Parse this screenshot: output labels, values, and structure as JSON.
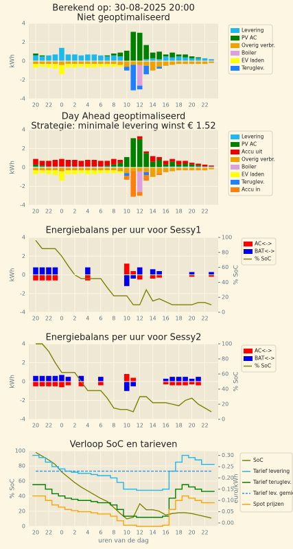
{
  "title": "Berekend op: 30-08-2025 20:00",
  "chart_data": [
    {
      "type": "bar",
      "title": "Niet geoptimaliseerd",
      "ylabel": "kWh",
      "categories": [
        "20",
        null,
        "22",
        null,
        "0",
        null,
        "2",
        null,
        "4",
        null,
        "6",
        null,
        "8",
        null,
        "10",
        null,
        "12",
        null,
        "14",
        null,
        "16",
        null,
        "18",
        null,
        "20",
        null,
        "22",
        null
      ],
      "ylim": [
        -4,
        4
      ],
      "yticks": [
        -4,
        -2,
        0,
        2,
        4
      ],
      "grid": true,
      "series": [
        {
          "name": "Levering",
          "color": "#1cb8ee",
          "values": [
            0.6,
            0.5,
            0.6,
            0.7,
            1.4,
            0.7,
            0.7,
            0.6,
            0.7,
            0.7,
            0.6,
            0.5,
            0.6,
            0.5,
            0,
            0,
            0,
            0.2,
            0.3,
            0.2,
            0.5,
            0.4,
            0.5,
            0.4,
            0.3,
            0.3,
            0.3,
            0.2
          ]
        },
        {
          "name": "PV AC",
          "color": "#008000",
          "values": [
            0.2,
            0.1,
            0,
            0,
            0,
            0,
            0,
            0,
            0,
            0,
            0,
            0.1,
            0.2,
            0.4,
            1.1,
            3.1,
            3.0,
            1.5,
            0.6,
            0.8,
            0.2,
            0.5,
            0.2,
            0.3,
            0.2,
            0.1,
            0,
            0
          ]
        },
        {
          "name": "Overig verbr.",
          "color": "#f0a000",
          "values": [
            -0.3,
            -0.3,
            -0.3,
            -0.3,
            -0.4,
            -0.3,
            -0.3,
            -0.3,
            -0.3,
            -0.3,
            -0.3,
            -0.3,
            -0.3,
            -0.4,
            -0.6,
            -0.4,
            -0.4,
            -0.5,
            -1.0,
            -0.6,
            -0.5,
            -0.4,
            -0.3,
            -0.3,
            -0.3,
            -0.3,
            -0.3,
            -0.2
          ]
        },
        {
          "name": "Boiler",
          "color": "#dda0dd",
          "values": [
            0,
            0,
            0,
            0,
            0,
            0,
            0,
            0,
            0,
            0,
            0,
            0,
            0,
            0,
            0,
            0,
            -2.2,
            0,
            0,
            0,
            0,
            0,
            0,
            0,
            0,
            0,
            0,
            0
          ]
        },
        {
          "name": "EV laden",
          "color": "#ffff00",
          "values": [
            -0.4,
            -0.3,
            -0.4,
            -0.5,
            -1.0,
            -0.4,
            -0.4,
            -0.3,
            -0.4,
            -0.4,
            -0.3,
            -0.3,
            -0.3,
            -0.2,
            0,
            0,
            0,
            0,
            0,
            0,
            0,
            0,
            0,
            0,
            0,
            0,
            0,
            0
          ]
        },
        {
          "name": "Teruglev.",
          "color": "#1e80ff",
          "values": [
            0,
            0,
            0,
            0,
            0,
            0,
            0,
            0,
            0,
            0,
            0,
            0,
            0,
            0,
            -0.4,
            -2.7,
            -0.4,
            -0.9,
            0,
            -0.2,
            0,
            0,
            0,
            0,
            0,
            0,
            0,
            0
          ]
        }
      ]
    },
    {
      "type": "bar",
      "title": "Day Ahead geoptimaliseerd",
      "subtitle": "Strategie: minimale levering winst € 1.52",
      "ylabel": "kWh",
      "categories": [
        "20",
        null,
        "22",
        null,
        "0",
        null,
        "2",
        null,
        "4",
        null,
        "6",
        null,
        "8",
        null,
        "10",
        null,
        "12",
        null,
        "14",
        null,
        "16",
        null,
        "18",
        null,
        "20",
        null,
        "22",
        null
      ],
      "ylim": [
        -4,
        4
      ],
      "yticks": [
        -4,
        -2,
        0,
        2,
        4
      ],
      "grid": true,
      "series": [
        {
          "name": "Levering",
          "color": "#1cb8ee",
          "values": [
            0.1,
            0.1,
            0.1,
            0.1,
            0.1,
            0.1,
            0.1,
            0.1,
            0.1,
            0.1,
            0.1,
            0.1,
            0.1,
            0.1,
            0,
            0,
            0,
            0,
            0,
            0,
            0.1,
            0.1,
            0.1,
            0.1,
            0.1,
            0.1,
            0.1,
            0.1
          ]
        },
        {
          "name": "PV AC",
          "color": "#008000",
          "values": [
            0.2,
            0.1,
            0,
            0,
            0,
            0,
            0,
            0,
            0,
            0,
            0,
            0.1,
            0.2,
            0.4,
            1.1,
            3.1,
            3.0,
            1.5,
            0.6,
            0.8,
            0.2,
            0.5,
            0.2,
            0.3,
            0.2,
            0.1,
            0,
            0
          ]
        },
        {
          "name": "Accu uit",
          "color": "#ee0000",
          "values": [
            0.6,
            0.5,
            0.6,
            0.7,
            0.8,
            0.7,
            0.7,
            0.6,
            0.7,
            0.7,
            0.6,
            0.5,
            0.6,
            0.3,
            0,
            0,
            0.3,
            0.2,
            0.6,
            0.3,
            0.4,
            0.3,
            0.4,
            0.3,
            0.2,
            0.2,
            0.2,
            0.1
          ]
        },
        {
          "name": "Overig verbr.",
          "color": "#f0a000",
          "values": [
            -0.3,
            -0.3,
            -0.3,
            -0.3,
            -0.4,
            -0.3,
            -0.3,
            -0.3,
            -0.3,
            -0.3,
            -0.3,
            -0.3,
            -0.3,
            -0.4,
            -0.6,
            -0.4,
            -0.4,
            -0.5,
            -1.0,
            -0.6,
            -0.5,
            -0.4,
            -0.3,
            -0.3,
            -0.3,
            -0.3,
            -0.3,
            -0.2
          ]
        },
        {
          "name": "Boiler",
          "color": "#dda0dd",
          "values": [
            0,
            0,
            0,
            0,
            0,
            0,
            0,
            0,
            0,
            0,
            0,
            0,
            0,
            0,
            0,
            0,
            -2.2,
            0,
            0,
            0,
            0,
            0,
            0,
            0,
            0,
            0,
            0,
            0
          ]
        },
        {
          "name": "EV laden",
          "color": "#ffff00",
          "values": [
            -0.4,
            -0.3,
            -0.4,
            -0.5,
            -1.0,
            -0.4,
            -0.4,
            -0.3,
            -0.4,
            -0.4,
            -0.3,
            -0.3,
            -0.3,
            -0.2,
            0,
            0,
            0,
            0,
            0,
            0,
            0,
            0,
            0,
            0,
            0,
            0,
            0,
            0
          ]
        },
        {
          "name": "Teruglev.",
          "color": "#1e80ff",
          "values": [
            0,
            0,
            0,
            0,
            0,
            0,
            0,
            0,
            0,
            0,
            0,
            0,
            0,
            0,
            -0.3,
            0,
            0,
            -0.3,
            0,
            0,
            0,
            0,
            0,
            0,
            0,
            0,
            0,
            0
          ]
        },
        {
          "name": "Accu in",
          "color": "#ff7f0e",
          "values": [
            0,
            0,
            0,
            0,
            0,
            0,
            0,
            0,
            0,
            0,
            0,
            0,
            0,
            0,
            -0.4,
            -2.7,
            -0.4,
            -0.6,
            0,
            -0.2,
            0,
            0,
            0,
            0,
            0,
            0,
            0,
            0
          ]
        }
      ]
    },
    {
      "type": "combo",
      "title": "Energiebalans per uur voor Sessy1",
      "ylabel": "kWh",
      "y2label": "% SoC",
      "categories": [
        "20",
        null,
        "22",
        null,
        "0",
        null,
        "2",
        null,
        "4",
        null,
        "6",
        null,
        "8",
        null,
        "10",
        null,
        "12",
        null,
        "14",
        null,
        "16",
        null,
        "18",
        null,
        "20",
        null,
        "22",
        null
      ],
      "ylim": [
        -4,
        4
      ],
      "yticks": [
        -4,
        -2,
        0,
        2,
        4
      ],
      "y2lim": [
        0,
        100
      ],
      "y2ticks": [
        0,
        20,
        40,
        60,
        80,
        100
      ],
      "grid": true,
      "series": [
        {
          "name": "AC<->",
          "color": "#ff0000",
          "kind": "bar",
          "values": [
            -0.6,
            -0.6,
            -0.6,
            -0.6,
            0,
            0,
            0,
            0,
            -0.6,
            0,
            0,
            0,
            0,
            0,
            1.2,
            0.4,
            -0.5,
            0,
            -0.4,
            -0.3,
            0,
            0,
            0,
            0,
            -0.2,
            0,
            0,
            -0.2
          ]
        },
        {
          "name": "BAT<->",
          "color": "#0000ee",
          "kind": "bar",
          "values": [
            0.8,
            0.8,
            0.8,
            0.8,
            0,
            0,
            0,
            0,
            0.8,
            0,
            0,
            0,
            0,
            0,
            -1.2,
            -0.4,
            0.8,
            0,
            0.6,
            0.4,
            0,
            0,
            0,
            0,
            0.3,
            0,
            0,
            0.3
          ]
        },
        {
          "name": "% SoC",
          "color": "#808000",
          "kind": "line",
          "axis": "y2",
          "values": [
            96,
            85,
            85,
            85,
            75,
            62,
            50,
            45,
            45,
            45,
            45,
            33,
            22,
            22,
            22,
            10,
            10,
            30,
            15,
            18,
            14,
            10,
            10,
            10,
            10,
            13,
            13,
            10
          ]
        }
      ]
    },
    {
      "type": "combo",
      "title": "Energiebalans per uur voor Sessy2",
      "ylabel": "kWh",
      "y2label": "% SoC",
      "categories": [
        "20",
        null,
        "22",
        null,
        "0",
        null,
        "2",
        null,
        "4",
        null,
        "6",
        null,
        "8",
        null,
        "10",
        null,
        "12",
        null,
        "14",
        null,
        "16",
        null,
        "18",
        null,
        "20",
        null,
        "22",
        null
      ],
      "ylim": [
        -4,
        4
      ],
      "yticks": [
        -4,
        -2,
        0,
        2,
        4
      ],
      "y2lim": [
        0,
        100
      ],
      "y2ticks": [
        0,
        20,
        40,
        60,
        80,
        100
      ],
      "grid": true,
      "series": [
        {
          "name": "AC<->",
          "color": "#ff0000",
          "kind": "bar",
          "values": [
            -0.5,
            -0.5,
            -0.5,
            -0.5,
            -0.6,
            -0.4,
            0,
            -0.5,
            0,
            0,
            -0.4,
            0,
            0,
            0,
            0.8,
            0.4,
            0,
            0,
            0,
            0,
            -0.3,
            -0.4,
            -0.4,
            -0.4,
            -0.3,
            -0.4,
            0,
            0
          ]
        },
        {
          "name": "BAT<->",
          "color": "#0000ee",
          "kind": "bar",
          "values": [
            0.6,
            0.6,
            0.6,
            0.6,
            0.7,
            0.5,
            0,
            0.6,
            0,
            0,
            0.5,
            0,
            0,
            0,
            -1.0,
            -0.5,
            0,
            0,
            0,
            0,
            0.3,
            0.5,
            0.5,
            0.5,
            0.3,
            0.5,
            0,
            0
          ]
        },
        {
          "name": "% SoC",
          "color": "#808000",
          "kind": "line",
          "axis": "y2",
          "values": [
            100,
            100,
            90,
            75,
            62,
            62,
            62,
            50,
            38,
            38,
            38,
            28,
            15,
            13,
            13,
            10,
            30,
            30,
            22,
            22,
            22,
            20,
            18,
            25,
            28,
            20,
            15,
            10
          ]
        }
      ]
    },
    {
      "type": "line",
      "title": "Verloop SoC en tarieven",
      "ylabel": "% SoC",
      "y2label": "euro/kWh",
      "xlabel": "uren van de dag",
      "categories": [
        "20",
        null,
        "22",
        null,
        "0",
        null,
        "2",
        null,
        "4",
        null,
        "6",
        null,
        "8",
        null,
        "10",
        null,
        "12",
        null,
        "14",
        null,
        "16",
        null,
        "18",
        null,
        "20",
        null,
        "22",
        null
      ],
      "ylim": [
        0,
        100
      ],
      "yticks": [
        0,
        20,
        40,
        60,
        80,
        100
      ],
      "y2lim": [
        -0.015,
        0.32
      ],
      "y2ticks": [
        {
          "value": 0,
          "label": "0.00"
        },
        {
          "value": 0.05,
          "label": "0.05"
        },
        {
          "value": 0.1,
          "label": "0.10"
        },
        {
          "value": 0.15,
          "label": "0.15"
        },
        {
          "value": 0.2,
          "label": "0.20"
        },
        {
          "value": 0.25,
          "label": "0.25"
        },
        {
          "value": 0.3,
          "label": "0.30"
        }
      ],
      "grid": true,
      "series": [
        {
          "name": "SoC",
          "color": "#808000",
          "values": [
            98,
            93,
            88,
            82,
            72,
            65,
            58,
            52,
            47,
            42,
            37,
            33,
            25,
            17,
            10,
            12,
            30,
            22,
            22,
            20,
            15,
            17,
            18,
            18,
            17,
            15,
            13,
            11
          ]
        },
        {
          "name": "Tarief levering",
          "color": "#1cb8ee",
          "axis": "y2",
          "step": true,
          "values": [
            0.3,
            0.29,
            0.27,
            0.25,
            0.24,
            0.23,
            0.225,
            0.22,
            0.22,
            0.215,
            0.21,
            0.21,
            0.2,
            0.18,
            0.15,
            0.15,
            0.145,
            0.145,
            0.145,
            0.145,
            0.15,
            0.23,
            0.27,
            0.3,
            0.29,
            0.28,
            0.26,
            0.26
          ]
        },
        {
          "name": "Tarief teruglev.",
          "color": "#008000",
          "axis": "y2",
          "step": true,
          "values": [
            0.17,
            0.17,
            0.15,
            0.13,
            0.12,
            0.11,
            0.105,
            0.1,
            0.1,
            0.095,
            0.09,
            0.09,
            0.08,
            0.06,
            0.03,
            0.03,
            0.025,
            0.025,
            0.025,
            0.025,
            0.03,
            0.11,
            0.15,
            0.17,
            0.16,
            0.15,
            0.14,
            0.14
          ]
        },
        {
          "name": "Tarief lev. gemid.",
          "color": "#1e9cff",
          "axis": "y2",
          "dash": true,
          "values": [
            0.23,
            0.23,
            0.23,
            0.23,
            0.23,
            0.23,
            0.23,
            0.23,
            0.23,
            0.23,
            0.23,
            0.23,
            0.23,
            0.23,
            0.23,
            0.23,
            0.23,
            0.23,
            0.23,
            0.23,
            0.23,
            0.23,
            0.23,
            0.23,
            0.23,
            0.23,
            0.23,
            0.23
          ]
        },
        {
          "name": "Spot prijzen",
          "color": "#ffa500",
          "axis": "y2",
          "step": true,
          "values": [
            0.12,
            0.12,
            0.1,
            0.08,
            0.07,
            0.06,
            0.055,
            0.05,
            0.05,
            0.045,
            0.04,
            0.04,
            0.03,
            0.01,
            -0.01,
            -0.01,
            -0.015,
            -0.015,
            -0.015,
            -0.015,
            -0.01,
            0.06,
            0.1,
            0.12,
            0.11,
            0.1,
            0.09,
            0.09
          ]
        }
      ]
    }
  ]
}
